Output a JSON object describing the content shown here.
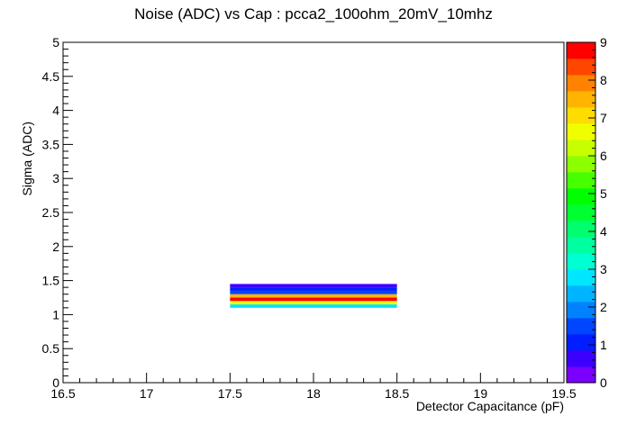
{
  "chart_data": {
    "type": "heatmap",
    "title": "Noise (ADC) vs Cap : pcca2_100ohm_20mV_10mhz",
    "xlabel": "Detector Capacitance (pF)",
    "ylabel": "Sigma (ADC)",
    "xlim": [
      16.5,
      19.5
    ],
    "ylim": [
      0,
      5
    ],
    "x_ticks": [
      "16.5",
      "17",
      "17.5",
      "18",
      "18.5",
      "19",
      "19.5"
    ],
    "y_ticks": [
      "0",
      "0.5",
      "1",
      "1.5",
      "2",
      "2.5",
      "3",
      "3.5",
      "4",
      "4.5",
      "5"
    ],
    "z_range": [
      0,
      9
    ],
    "z_ticks": [
      "0",
      "1",
      "2",
      "3",
      "4",
      "5",
      "6",
      "7",
      "8",
      "9"
    ],
    "colorbar_colors": [
      "#7a00ff",
      "#3c00ff",
      "#001eff",
      "#0046ff",
      "#0082ff",
      "#00b4ff",
      "#00e6ff",
      "#00ffd2",
      "#00ffa0",
      "#00ff6e",
      "#00ff32",
      "#00ff00",
      "#46ff00",
      "#8cff00",
      "#c8ff00",
      "#f0ff00",
      "#ffdc00",
      "#ffb400",
      "#ff8200",
      "#ff4600",
      "#ff0000"
    ],
    "cells": [
      {
        "x0": 17.5,
        "x1": 18.5,
        "y0": 1.1,
        "y1": 1.15,
        "z": 2.8
      },
      {
        "x0": 17.5,
        "x1": 18.5,
        "y0": 1.15,
        "y1": 1.2,
        "z": 6.8
      },
      {
        "x0": 17.5,
        "x1": 18.5,
        "y0": 1.2,
        "y1": 1.25,
        "z": 9.0
      },
      {
        "x0": 17.5,
        "x1": 18.5,
        "y0": 1.25,
        "y1": 1.3,
        "z": 7.6
      },
      {
        "x0": 17.5,
        "x1": 18.5,
        "y0": 1.3,
        "y1": 1.35,
        "z": 1.6
      },
      {
        "x0": 17.5,
        "x1": 18.5,
        "y0": 1.35,
        "y1": 1.4,
        "z": 1.0
      },
      {
        "x0": 17.5,
        "x1": 18.5,
        "y0": 1.4,
        "y1": 1.45,
        "z": 0.8
      }
    ],
    "grid": false,
    "legend": "colorbar-right"
  }
}
